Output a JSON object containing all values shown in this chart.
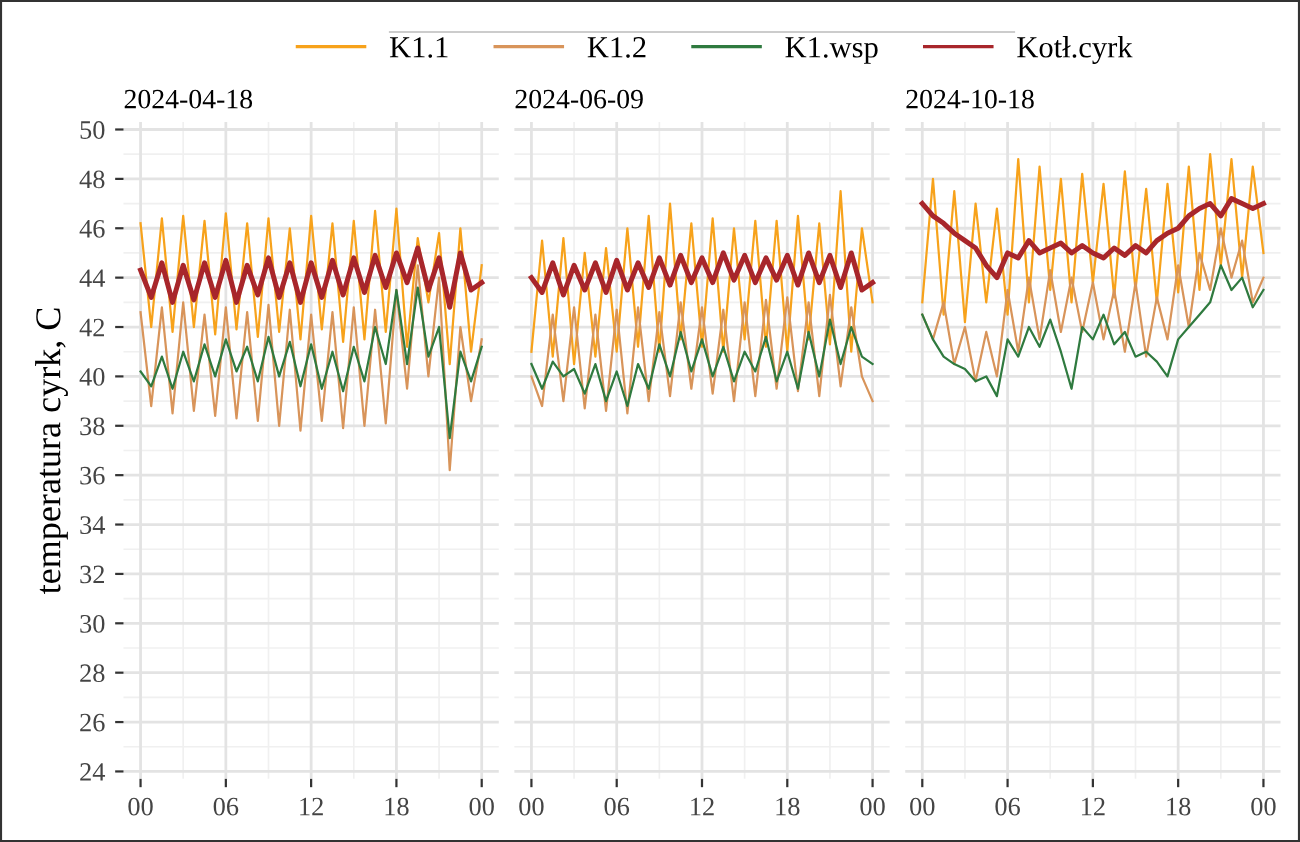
{
  "chart_data": [
    {
      "type": "line",
      "title": "2024-04-18",
      "ylabel": "temperatura cyrk, C",
      "legend": "top",
      "grid": true,
      "x": [
        0,
        0.75,
        1.5,
        2.25,
        3,
        3.75,
        4.5,
        5.25,
        6,
        6.75,
        7.5,
        8.25,
        9,
        9.75,
        10.5,
        11.25,
        12,
        12.75,
        13.5,
        14.25,
        15,
        15.75,
        16.5,
        17.25,
        18,
        18.75,
        19.5,
        20.25,
        21,
        21.75,
        22.5,
        23.25,
        24
      ],
      "xlim": [
        -1.2,
        25.2
      ],
      "xticks": [
        {
          "value": 0,
          "label": "00"
        },
        {
          "value": 6,
          "label": "06"
        },
        12,
        18,
        {
          "value": 24,
          "label": "00"
        }
      ],
      "ylim": [
        23.7,
        50.3
      ],
      "yticks": [
        24,
        26,
        28,
        30,
        32,
        34,
        36,
        38,
        40,
        42,
        44,
        46,
        48,
        50
      ],
      "series": [
        {
          "name": "K1.1",
          "color": "#f7a21b",
          "values": [
            46.2,
            42.0,
            46.4,
            41.8,
            46.5,
            42.0,
            46.3,
            41.7,
            46.6,
            41.9,
            46.2,
            41.6,
            46.4,
            41.8,
            46.0,
            41.5,
            46.5,
            41.9,
            46.2,
            41.4,
            46.3,
            41.5,
            46.7,
            41.8,
            46.8,
            41.2,
            45.6,
            43.0,
            45.8,
            40.5,
            46.0,
            41.0,
            44.5
          ]
        },
        {
          "name": "K1.2",
          "color": "#d8945a",
          "values": [
            42.6,
            38.8,
            42.8,
            38.5,
            43.0,
            38.6,
            42.5,
            38.4,
            42.8,
            38.3,
            42.6,
            38.2,
            42.9,
            38.0,
            42.7,
            37.8,
            42.5,
            38.2,
            42.6,
            37.9,
            42.8,
            38.0,
            42.7,
            38.1,
            43.5,
            39.5,
            44.5,
            40.0,
            44.0,
            36.2,
            42.0,
            39.0,
            41.5
          ]
        },
        {
          "name": "K1.wsp",
          "color": "#2f7a3f",
          "values": [
            40.2,
            39.6,
            40.8,
            39.5,
            41.0,
            39.8,
            41.3,
            40.0,
            41.5,
            40.2,
            41.2,
            39.8,
            41.6,
            40.0,
            41.4,
            39.6,
            41.3,
            39.5,
            41.0,
            39.4,
            41.2,
            39.8,
            42.0,
            40.5,
            43.5,
            40.5,
            43.6,
            40.8,
            42.0,
            37.5,
            41.0,
            39.8,
            41.2
          ]
        },
        {
          "name": "Kotł.cyrk",
          "color": "#a8262b",
          "values": [
            44.3,
            43.2,
            44.6,
            43.0,
            44.5,
            43.1,
            44.6,
            43.2,
            44.7,
            43.0,
            44.5,
            43.3,
            44.8,
            43.2,
            44.6,
            43.0,
            44.6,
            43.2,
            44.7,
            43.3,
            44.8,
            43.4,
            44.9,
            43.6,
            45.0,
            43.8,
            45.2,
            43.5,
            44.8,
            42.8,
            45.0,
            43.5,
            43.8
          ]
        }
      ]
    },
    {
      "type": "line",
      "title": "2024-06-09",
      "grid": true,
      "tick_labels": "x",
      "x": [
        0,
        0.75,
        1.5,
        2.25,
        3,
        3.75,
        4.5,
        5.25,
        6,
        6.75,
        7.5,
        8.25,
        9,
        9.75,
        10.5,
        11.25,
        12,
        12.75,
        13.5,
        14.25,
        15,
        15.75,
        16.5,
        17.25,
        18,
        18.75,
        19.5,
        20.25,
        21,
        21.75,
        22.5,
        23.25,
        24
      ],
      "xlim": [
        -1.2,
        25.2
      ],
      "xticks": [
        {
          "value": 0,
          "label": "00"
        },
        {
          "value": 6,
          "label": "06"
        },
        12,
        18,
        {
          "value": 24,
          "label": "00"
        }
      ],
      "ylim": [
        23.7,
        50.3
      ],
      "yticks": [
        24,
        26,
        28,
        30,
        32,
        34,
        36,
        38,
        40,
        42,
        44,
        46,
        48,
        50
      ],
      "series": [
        {
          "color": "#f7a21b",
          "values": [
            41.0,
            45.5,
            40.8,
            45.6,
            40.5,
            45.0,
            40.8,
            45.2,
            41.0,
            46.0,
            41.2,
            46.5,
            41.0,
            47.0,
            41.5,
            46.2,
            41.2,
            46.4,
            41.0,
            46.0,
            41.5,
            46.3,
            41.2,
            46.3,
            41.0,
            46.5,
            41.5,
            46.2,
            41.3,
            47.5,
            41.0,
            46.0,
            43.0
          ]
        },
        {
          "color": "#d8945a",
          "values": [
            40.0,
            38.8,
            42.5,
            39.0,
            42.8,
            38.7,
            42.5,
            38.6,
            42.7,
            38.5,
            42.8,
            39.0,
            42.6,
            39.2,
            43.0,
            39.5,
            42.8,
            39.3,
            42.7,
            39.0,
            43.0,
            39.2,
            43.1,
            39.5,
            43.2,
            39.4,
            43.0,
            39.2,
            43.3,
            39.6,
            42.8,
            40.0,
            39.0
          ]
        },
        {
          "color": "#2f7a3f",
          "values": [
            40.5,
            39.5,
            40.6,
            40.0,
            40.3,
            39.3,
            40.5,
            39.0,
            40.2,
            38.8,
            40.5,
            39.5,
            41.3,
            40.0,
            41.8,
            40.2,
            41.5,
            40.0,
            41.2,
            39.8,
            41.0,
            40.2,
            41.6,
            39.8,
            41.0,
            39.5,
            41.8,
            40.0,
            42.3,
            40.5,
            42.0,
            40.8,
            40.5
          ]
        },
        {
          "color": "#a8262b",
          "values": [
            44.0,
            43.4,
            44.6,
            43.3,
            44.5,
            43.5,
            44.6,
            43.4,
            44.7,
            43.5,
            44.6,
            43.6,
            44.8,
            43.7,
            44.9,
            43.8,
            44.8,
            43.8,
            45.0,
            43.9,
            44.9,
            43.8,
            44.8,
            43.9,
            44.9,
            43.7,
            45.0,
            43.8,
            44.9,
            43.6,
            45.0,
            43.5,
            43.8
          ]
        }
      ]
    },
    {
      "type": "line",
      "title": "2024-10-18",
      "grid": true,
      "tick_labels": "x",
      "x": [
        0,
        0.75,
        1.5,
        2.25,
        3,
        3.75,
        4.5,
        5.25,
        6,
        6.75,
        7.5,
        8.25,
        9,
        9.75,
        10.5,
        11.25,
        12,
        12.75,
        13.5,
        14.25,
        15,
        15.75,
        16.5,
        17.25,
        18,
        18.75,
        19.5,
        20.25,
        21,
        21.75,
        22.5,
        23.25,
        24
      ],
      "xlim": [
        -1.2,
        25.2
      ],
      "xticks": [
        {
          "value": 0,
          "label": "00"
        },
        {
          "value": 6,
          "label": "06"
        },
        12,
        18,
        {
          "value": 24,
          "label": "00"
        }
      ],
      "ylim": [
        23.7,
        50.3
      ],
      "yticks": [
        24,
        26,
        28,
        30,
        32,
        34,
        36,
        38,
        40,
        42,
        44,
        46,
        48,
        50
      ],
      "series": [
        {
          "color": "#f7a21b",
          "values": [
            43.0,
            48.0,
            42.5,
            47.5,
            42.2,
            47.0,
            43.0,
            46.8,
            42.5,
            48.8,
            43.0,
            48.5,
            43.5,
            48.0,
            43.0,
            48.2,
            43.8,
            47.8,
            43.2,
            48.3,
            43.5,
            47.6,
            43.0,
            47.8,
            43.4,
            48.5,
            43.5,
            49.0,
            44.5,
            48.8,
            44.0,
            48.5,
            45.0
          ]
        },
        {
          "color": "#d8945a",
          "values": [
            42.5,
            41.5,
            43.0,
            40.5,
            42.0,
            39.8,
            41.8,
            40.0,
            43.5,
            41.0,
            44.0,
            41.5,
            44.3,
            41.8,
            44.0,
            41.8,
            43.8,
            41.5,
            43.5,
            41.0,
            43.8,
            40.8,
            43.2,
            41.5,
            44.5,
            42.0,
            45.0,
            43.5,
            46.0,
            44.0,
            45.5,
            43.0,
            44.0
          ]
        },
        {
          "color": "#2f7a3f",
          "values": [
            42.5,
            41.5,
            40.8,
            40.5,
            40.3,
            39.8,
            40.0,
            39.2,
            41.5,
            40.8,
            42.0,
            41.2,
            42.3,
            41.0,
            39.5,
            42.0,
            41.5,
            42.5,
            41.3,
            41.8,
            40.8,
            41.0,
            40.6,
            40.0,
            41.5,
            42.0,
            42.5,
            43.0,
            44.5,
            43.5,
            44.0,
            42.8,
            43.5
          ]
        },
        {
          "color": "#a8262b",
          "values": [
            47.0,
            46.5,
            46.2,
            45.8,
            45.5,
            45.2,
            44.5,
            44.0,
            45.0,
            44.8,
            45.5,
            45.0,
            45.2,
            45.4,
            45.0,
            45.3,
            45.0,
            44.8,
            45.2,
            44.9,
            45.3,
            45.0,
            45.5,
            45.8,
            46.0,
            46.5,
            46.8,
            47.0,
            46.5,
            47.2,
            47.0,
            46.8,
            47.0
          ]
        }
      ]
    }
  ]
}
